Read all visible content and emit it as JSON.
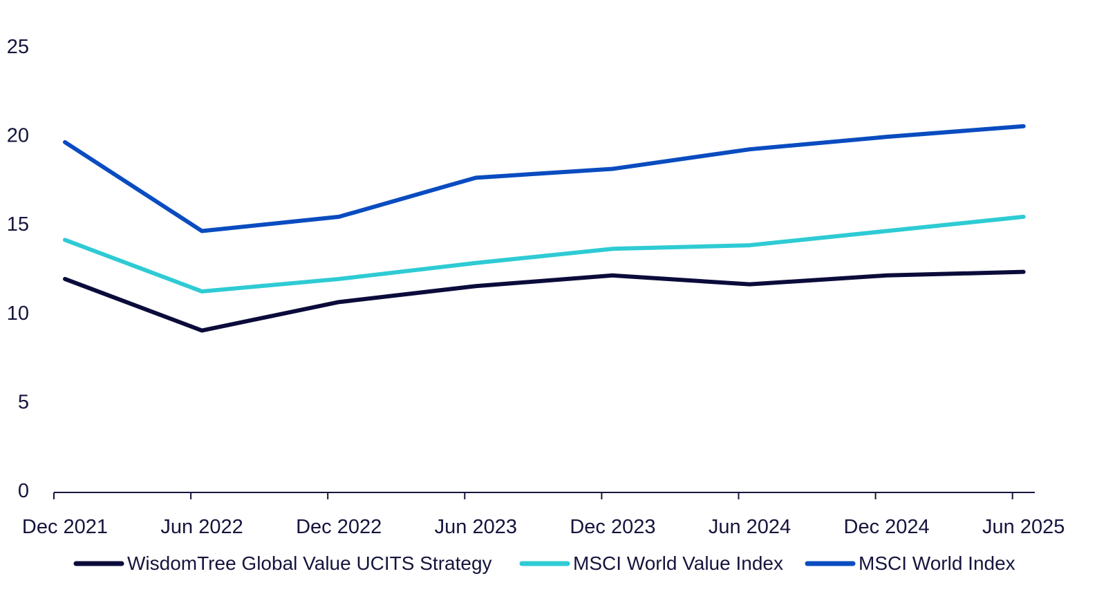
{
  "chart_data": {
    "type": "line",
    "title": "",
    "xlabel": "",
    "ylabel": "",
    "categories": [
      "Dec 2021",
      "Jun 2022",
      "Dec 2022",
      "Jun 2023",
      "Dec 2023",
      "Jun 2024",
      "Dec 2024",
      "Jun 2025"
    ],
    "ylim": [
      0,
      25
    ],
    "yticks": [
      "0",
      "5",
      "10",
      "15",
      "20",
      "25"
    ],
    "grid": false,
    "legend_position": "bottom",
    "series": [
      {
        "name": "WisdomTree Global Value UCITS Strategy",
        "color": "#0b0b3b",
        "values": [
          11.9,
          9.0,
          10.6,
          11.5,
          12.1,
          11.6,
          12.1,
          12.3
        ]
      },
      {
        "name": "MSCI World Value Index",
        "color": "#2ecbd4",
        "values": [
          14.1,
          11.2,
          11.9,
          12.8,
          13.6,
          13.8,
          14.6,
          15.4
        ]
      },
      {
        "name": "MSCI World Index",
        "color": "#0a4cc0",
        "values": [
          19.6,
          14.6,
          15.4,
          17.6,
          18.1,
          19.2,
          19.9,
          20.5
        ]
      }
    ]
  }
}
